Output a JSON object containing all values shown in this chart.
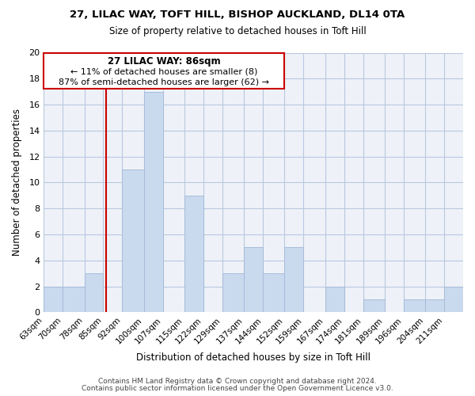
{
  "title1": "27, LILAC WAY, TOFT HILL, BISHOP AUCKLAND, DL14 0TA",
  "title2": "Size of property relative to detached houses in Toft Hill",
  "xlabel": "Distribution of detached houses by size in Toft Hill",
  "ylabel": "Number of detached properties",
  "bin_edges": [
    63,
    70,
    78,
    85,
    92,
    100,
    107,
    115,
    122,
    129,
    137,
    144,
    152,
    159,
    167,
    174,
    181,
    189,
    196,
    204,
    211,
    218
  ],
  "bin_labels": [
    "63sqm",
    "70sqm",
    "78sqm",
    "85sqm",
    "92sqm",
    "100sqm",
    "107sqm",
    "115sqm",
    "122sqm",
    "129sqm",
    "137sqm",
    "144sqm",
    "152sqm",
    "159sqm",
    "167sqm",
    "174sqm",
    "181sqm",
    "189sqm",
    "196sqm",
    "204sqm",
    "211sqm"
  ],
  "bar_values": [
    2,
    2,
    3,
    0,
    11,
    17,
    0,
    9,
    0,
    3,
    5,
    3,
    5,
    0,
    2,
    0,
    1,
    0,
    1,
    1,
    2
  ],
  "bar_color": "#c9d9ee",
  "bar_edge_color": "#a8bcd8",
  "vline_x": 86,
  "vline_color": "#cc0000",
  "annotation_title": "27 LILAC WAY: 86sqm",
  "annotation_line1": "← 11% of detached houses are smaller (8)",
  "annotation_line2": "87% of semi-detached houses are larger (62) →",
  "annotation_box_color": "#ffffff",
  "annotation_box_edge": "#cc0000",
  "ylim": [
    0,
    20
  ],
  "yticks": [
    0,
    2,
    4,
    6,
    8,
    10,
    12,
    14,
    16,
    18,
    20
  ],
  "footer1": "Contains HM Land Registry data © Crown copyright and database right 2024.",
  "footer2": "Contains public sector information licensed under the Open Government Licence v3.0.",
  "bg_color": "#eef2f8"
}
